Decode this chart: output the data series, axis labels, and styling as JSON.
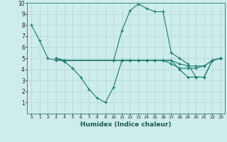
{
  "xlabel": "Humidex (Indice chaleur)",
  "ylabel": "",
  "xlim": [
    -0.5,
    23.5
  ],
  "ylim": [
    0,
    10
  ],
  "background_color": "#ceecea",
  "grid_color": "#aed8d4",
  "line_color": "#1a7a6e",
  "series": [
    {
      "x": [
        0,
        1,
        2,
        3,
        4,
        10,
        11,
        12,
        13,
        14,
        15,
        16,
        17,
        18,
        19,
        20,
        21,
        22,
        23
      ],
      "y": [
        8.0,
        6.6,
        5.0,
        4.8,
        4.8,
        4.8,
        7.5,
        9.3,
        9.9,
        9.5,
        9.2,
        9.2,
        5.5,
        5.0,
        4.5,
        3.3,
        3.3,
        4.8,
        5.0
      ]
    },
    {
      "x": [
        3,
        4,
        5,
        6,
        7,
        8,
        9,
        10,
        11,
        12,
        13,
        14,
        15,
        16,
        17,
        18,
        19,
        20,
        21,
        22,
        23
      ],
      "y": [
        5.0,
        4.7,
        4.1,
        3.3,
        2.2,
        1.4,
        1.0,
        2.4,
        4.8,
        4.8,
        4.8,
        4.8,
        4.8,
        4.8,
        4.8,
        4.0,
        3.3,
        3.3,
        3.3,
        4.8,
        5.0
      ]
    },
    {
      "x": [
        3,
        4,
        10,
        11,
        12,
        13,
        14,
        15,
        16,
        17,
        18,
        19,
        20,
        21,
        22,
        23
      ],
      "y": [
        5.0,
        4.8,
        4.8,
        4.8,
        4.8,
        4.8,
        4.8,
        4.8,
        4.8,
        4.8,
        4.5,
        4.3,
        4.3,
        4.3,
        4.8,
        5.0
      ]
    },
    {
      "x": [
        3,
        4,
        10,
        11,
        12,
        13,
        14,
        15,
        16,
        17,
        18,
        19,
        20,
        21,
        22,
        23
      ],
      "y": [
        5.0,
        4.8,
        4.8,
        4.8,
        4.8,
        4.8,
        4.8,
        4.8,
        4.8,
        4.5,
        4.1,
        4.1,
        4.1,
        4.3,
        4.8,
        5.0
      ]
    }
  ]
}
